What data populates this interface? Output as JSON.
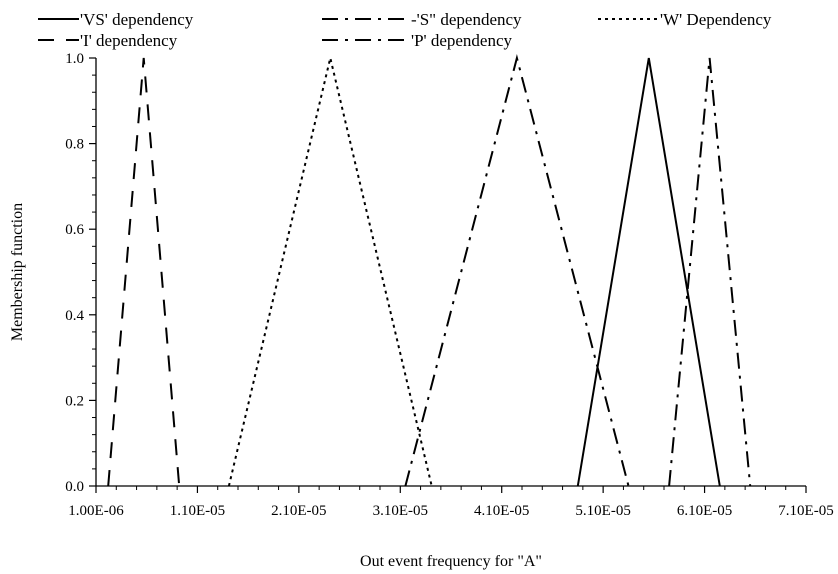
{
  "chart_data": {
    "type": "line",
    "title": "",
    "xlabel": "Out event frequency for \"A\"",
    "ylabel": "Membership function",
    "xlim": [
      1e-06,
      7.1e-05
    ],
    "ylim": [
      0,
      1.0
    ],
    "x_tick_values": [
      1e-06,
      1.1e-05,
      2.1e-05,
      3.1e-05,
      4.1e-05,
      5.1e-05,
      6.1e-05,
      7.1e-05
    ],
    "x_tick_labels": [
      "1.00E-06",
      "1.10E-05",
      "2.10E-05",
      "3.10E-05",
      "4.10E-05",
      "5.10E-05",
      "6.10E-05",
      "7.10E-05"
    ],
    "y_tick_values": [
      0,
      0.2,
      0.4,
      0.6,
      0.8,
      1.0
    ],
    "y_tick_labels": [
      "0.0",
      "0.2",
      "0.4",
      "0.6",
      "0.8",
      "1.0"
    ],
    "grid": false,
    "legend_placement": "top",
    "series": [
      {
        "name": "'VS' dependency",
        "dash": "solid",
        "x": [
          4.85e-05,
          5.55e-05,
          6.25e-05
        ],
        "y": [
          0,
          1,
          0
        ]
      },
      {
        "name": "-'S\" dependency",
        "dash": "dashdot",
        "x": [
          5.75e-05,
          6.15e-05,
          6.55e-05
        ],
        "y": [
          0,
          1,
          0
        ]
      },
      {
        "name": "'W' Dependency",
        "dash": "dotted",
        "x": [
          1.41e-05,
          2.41e-05,
          3.41e-05
        ],
        "y": [
          0,
          1,
          0
        ]
      },
      {
        "name": "'I' dependency",
        "dash": "dashed",
        "x": [
          2.2e-06,
          5.7e-06,
          9.2e-06
        ],
        "y": [
          0,
          1,
          0
        ]
      },
      {
        "name": "'P' dependency",
        "dash": "dashdot",
        "x": [
          3.15e-05,
          4.25e-05,
          5.35e-05
        ],
        "y": [
          0,
          1,
          0
        ]
      }
    ]
  }
}
